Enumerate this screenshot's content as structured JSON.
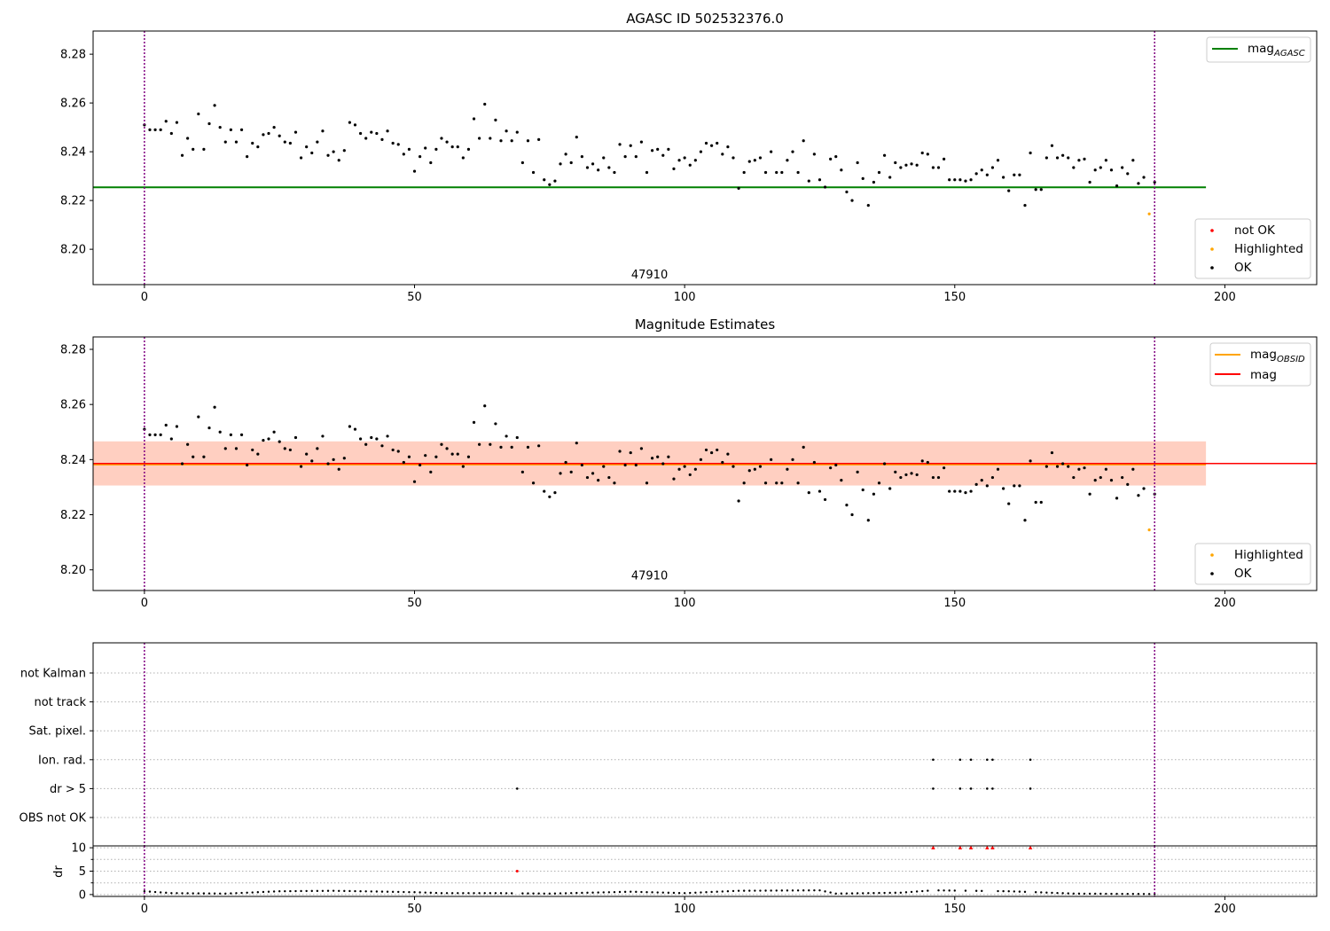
{
  "figure": {
    "title": "AGASC ID 502532376.0",
    "obsid_label": "47910"
  },
  "chart_data": [
    {
      "type": "scatter",
      "panel": "agasc",
      "title": "AGASC ID 502532376.0",
      "xlim": [
        -9.5,
        217
      ],
      "ylim": [
        8.1855,
        8.2895
      ],
      "xticks": [
        0,
        50,
        100,
        150,
        200
      ],
      "yticks": [
        8.2,
        8.22,
        8.24,
        8.26,
        8.28
      ],
      "hlines": [
        {
          "name": "mag_AGASC",
          "y": 8.2254,
          "xrange": [
            -9.5,
            196.5
          ],
          "color": "#008000"
        }
      ],
      "vlines": [
        {
          "x": 0,
          "color": "#800080"
        },
        {
          "x": 187,
          "color": "#800080"
        }
      ],
      "annotation": {
        "text": "47910",
        "x": 93.5,
        "y": 8.188
      },
      "legend_top": {
        "position": "top-right",
        "entries": [
          {
            "label": "mag",
            "subscript": "AGASC",
            "kind": "line",
            "color": "#008000"
          }
        ]
      },
      "legend_bottom": {
        "position": "lower-right",
        "entries": [
          {
            "label": "not OK",
            "kind": "dot",
            "color": "#ff0000"
          },
          {
            "label": "Highlighted",
            "kind": "dot",
            "color": "#ffa500"
          },
          {
            "label": "OK",
            "kind": "dot",
            "color": "#000000"
          }
        ]
      },
      "highlighted": [
        {
          "x": 186,
          "y": 8.2145
        }
      ]
    },
    {
      "type": "scatter",
      "panel": "estimates",
      "title": "Magnitude Estimates",
      "xlim": [
        -9.5,
        217
      ],
      "ylim": [
        8.1925,
        8.2845
      ],
      "xticks": [
        0,
        50,
        100,
        150,
        200
      ],
      "yticks": [
        8.2,
        8.22,
        8.24,
        8.26,
        8.28
      ],
      "mag": 8.2386,
      "mag_obsid": 8.2383,
      "band": {
        "y0": 8.2306,
        "y1": 8.2466,
        "xrange": [
          -9.5,
          196.5
        ]
      },
      "vlines": [
        {
          "x": 0,
          "color": "#800080"
        },
        {
          "x": 187,
          "color": "#800080"
        }
      ],
      "annotation": {
        "text": "47910",
        "x": 93.5,
        "y": 8.1965
      },
      "legend_top": {
        "position": "top-right",
        "entries": [
          {
            "label": "mag",
            "subscript": "OBSID",
            "kind": "line",
            "color": "#ffa500"
          },
          {
            "label": "mag",
            "subscript": "",
            "kind": "line",
            "color": "#ff0000"
          }
        ]
      },
      "legend_bottom": {
        "position": "lower-right",
        "entries": [
          {
            "label": "Highlighted",
            "kind": "dot",
            "color": "#ffa500"
          },
          {
            "label": "OK",
            "kind": "dot",
            "color": "#000000"
          }
        ]
      },
      "highlighted": [
        {
          "x": 186,
          "y": 8.2145
        }
      ]
    },
    {
      "type": "scatter",
      "panel": "flags",
      "xlim": [
        -9.5,
        217
      ],
      "categories": [
        "not Kalman",
        "not track",
        "Sat. pixel.",
        "Ion. rad.",
        "dr > 5",
        "OBS not OK"
      ],
      "flag_points": {
        "Ion. rad.": [
          146,
          151,
          153,
          156,
          157,
          164
        ],
        "dr > 5": [
          69,
          146,
          151,
          153,
          156,
          157,
          164
        ]
      },
      "vlines": [
        {
          "x": 0,
          "color": "#800080"
        },
        {
          "x": 187,
          "color": "#800080"
        }
      ]
    },
    {
      "type": "scatter",
      "panel": "dr",
      "ylabel": "dr",
      "xlim": [
        -9.5,
        217
      ],
      "ylim": [
        -0.4,
        10.4
      ],
      "xticks": [
        0,
        50,
        100,
        150,
        200
      ],
      "yticks": [
        0,
        5,
        10
      ],
      "clipped_at_10": [
        146,
        151,
        153,
        156,
        157,
        164
      ],
      "red_points": [
        {
          "x": 69,
          "y": 5.0
        }
      ],
      "dr_profile": [
        [
          0,
          0.7
        ],
        [
          5,
          0.3
        ],
        [
          15,
          0.2
        ],
        [
          25,
          0.7
        ],
        [
          35,
          0.8
        ],
        [
          50,
          0.5
        ],
        [
          55,
          0.3
        ],
        [
          65,
          0.3
        ],
        [
          75,
          0.2
        ],
        [
          90,
          0.6
        ],
        [
          100,
          0.3
        ],
        [
          110,
          0.8
        ],
        [
          125,
          0.9
        ],
        [
          128,
          0.2
        ],
        [
          140,
          0.4
        ],
        [
          146,
          0.9
        ],
        [
          160,
          0.7
        ],
        [
          165,
          0.5
        ],
        [
          172,
          0.2
        ],
        [
          187,
          0.1
        ]
      ],
      "vlines": [
        {
          "x": 0,
          "color": "#800080"
        },
        {
          "x": 187,
          "color": "#800080"
        }
      ]
    }
  ],
  "mag_series": [
    8.251,
    8.249,
    8.249,
    8.249,
    8.2525,
    8.2475,
    8.252,
    8.2385,
    8.2455,
    8.241,
    8.2555,
    8.241,
    8.2515,
    8.259,
    8.25,
    8.244,
    8.249,
    8.244,
    8.249,
    8.238,
    8.2435,
    8.242,
    8.247,
    8.2475,
    8.25,
    8.2465,
    8.244,
    8.2435,
    8.248,
    8.2375,
    8.242,
    8.2395,
    8.244,
    8.2485,
    8.2385,
    8.24,
    8.2365,
    8.2405,
    8.252,
    8.251,
    8.2475,
    8.2455,
    8.248,
    8.2475,
    8.245,
    8.2485,
    8.2435,
    8.243,
    8.239,
    8.241,
    8.232,
    8.238,
    8.2415,
    8.2355,
    8.241,
    8.2455,
    8.244,
    8.242,
    8.242,
    8.2375,
    8.241,
    8.2535,
    8.2455,
    8.2595,
    8.2455,
    8.253,
    8.2445,
    8.2485,
    8.2445,
    8.248,
    8.2355,
    8.2445,
    8.2315,
    8.245,
    8.2285,
    8.2265,
    8.228,
    8.235,
    8.239,
    8.2355,
    8.246,
    8.238,
    8.2335,
    8.235,
    8.2325,
    8.2375,
    8.2335,
    8.2315,
    8.243,
    8.238,
    8.2425,
    8.238,
    8.244,
    8.2315,
    8.2405,
    8.241,
    8.2385,
    8.241,
    8.233,
    8.2365,
    8.2375,
    8.2345,
    8.2365,
    8.24,
    8.2435,
    8.2425,
    8.2435,
    8.239,
    8.242,
    8.2375,
    8.225,
    8.2315,
    8.236,
    8.2365,
    8.2375,
    8.2315,
    8.24,
    8.2315,
    8.2315,
    8.2365,
    8.24,
    8.2315,
    8.2445,
    8.228,
    8.239,
    8.2285,
    8.2255,
    8.237,
    8.238,
    8.2325,
    8.2235,
    8.22,
    8.2355,
    8.229,
    8.218,
    8.2275,
    8.2315,
    8.2385,
    8.2295,
    8.2355,
    8.2335,
    8.2345,
    8.235,
    8.2345,
    8.2395,
    8.239,
    8.2335,
    8.2335,
    8.237,
    8.2285,
    8.2285,
    8.2285,
    8.228,
    8.2285,
    8.231,
    8.2325,
    8.2305,
    8.2335,
    8.2365,
    8.2295,
    8.224,
    8.2305,
    8.2305,
    8.218,
    8.2395,
    8.2245,
    8.2245,
    8.2375,
    8.2425,
    8.2375,
    8.2385,
    8.2375,
    8.2335,
    8.2365,
    8.237,
    8.2275,
    8.2325,
    8.2335,
    8.2365,
    8.2325,
    8.226,
    8.2335,
    8.231,
    8.2365,
    8.227,
    8.2295,
    8.2145,
    8.2275
  ]
}
